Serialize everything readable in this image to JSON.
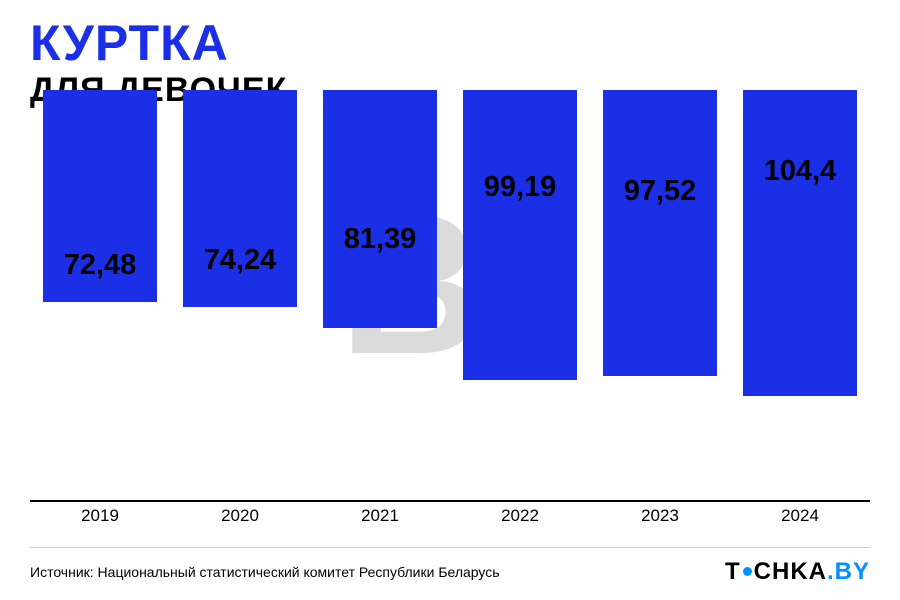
{
  "header": {
    "title": "КУРТКА",
    "title_color": "#1a2fe6",
    "title_fontsize": 50,
    "subtitle": "ДЛЯ ДЕВОЧЕК",
    "subtitle_fontsize": 34
  },
  "watermark": {
    "text": "Br",
    "fontsize": 200
  },
  "chart": {
    "type": "bar",
    "categories": [
      "2019",
      "2020",
      "2021",
      "2022",
      "2023",
      "2024"
    ],
    "values": [
      72.48,
      74.24,
      81.39,
      99.19,
      97.52,
      104.4
    ],
    "value_labels": [
      "72,48",
      "74,24",
      "81,39",
      "99,19",
      "97,52",
      "104,4"
    ],
    "bar_color": "#1a2fe6",
    "ymax": 140,
    "value_label_fontsize": 29,
    "xlabel_fontsize": 17,
    "axis_color": "#000000",
    "background_color": "#ffffff"
  },
  "footer": {
    "source": "Источник: Национальный статистический комитет Республики Беларусь",
    "source_fontsize": 14
  },
  "logo": {
    "text_left": "T",
    "text_right": "CHKA",
    "suffix": ".BY",
    "text_color": "#000000",
    "dot_color": "#0090ff",
    "suffix_color": "#0090ff",
    "fontsize": 24
  }
}
